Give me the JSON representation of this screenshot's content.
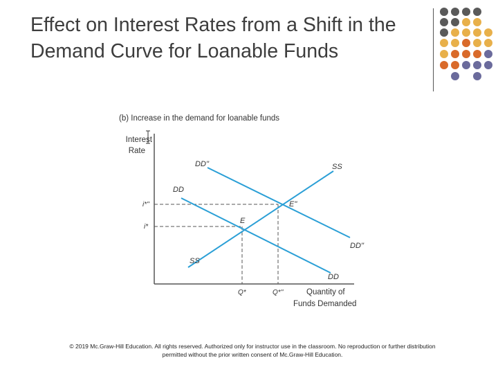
{
  "slide": {
    "title": "Effect on Interest Rates from a Shift in the Demand Curve for Loanable Funds",
    "footer": "© 2019 Mc.Graw-Hill Education. All rights reserved. Authorized only for instructor use in the classroom. No reproduction or further distribution permitted without the prior written consent of Mc.Graw-Hill Education."
  },
  "decoration": {
    "dot_colors": {
      "dark": "#5a5a5a",
      "yellow": "#e8b04a",
      "orange": "#d96a2a",
      "purple": "#6b6b9c"
    },
    "divider_color": "#555555"
  },
  "diagram": {
    "subtitle": "(b) Increase in the demand for loanable funds",
    "y_axis_label_line1": "Interest",
    "y_axis_label_line2": "Rate",
    "x_axis_label_line1": "Quantity of",
    "x_axis_label_line2": "Funds Demanded",
    "curve_color": "#2a9fd6",
    "labels": {
      "dd_new_upper": "DD''",
      "ss_upper": "SS",
      "dd_upper": "DD",
      "e_new": "E''",
      "e": "E",
      "dd_new_lower": "DD''",
      "ss_lower": "SS",
      "dd_lower": "DD",
      "i_new": "i*''",
      "i": "i*",
      "q": "Q*",
      "q_new": "Q*''"
    }
  }
}
